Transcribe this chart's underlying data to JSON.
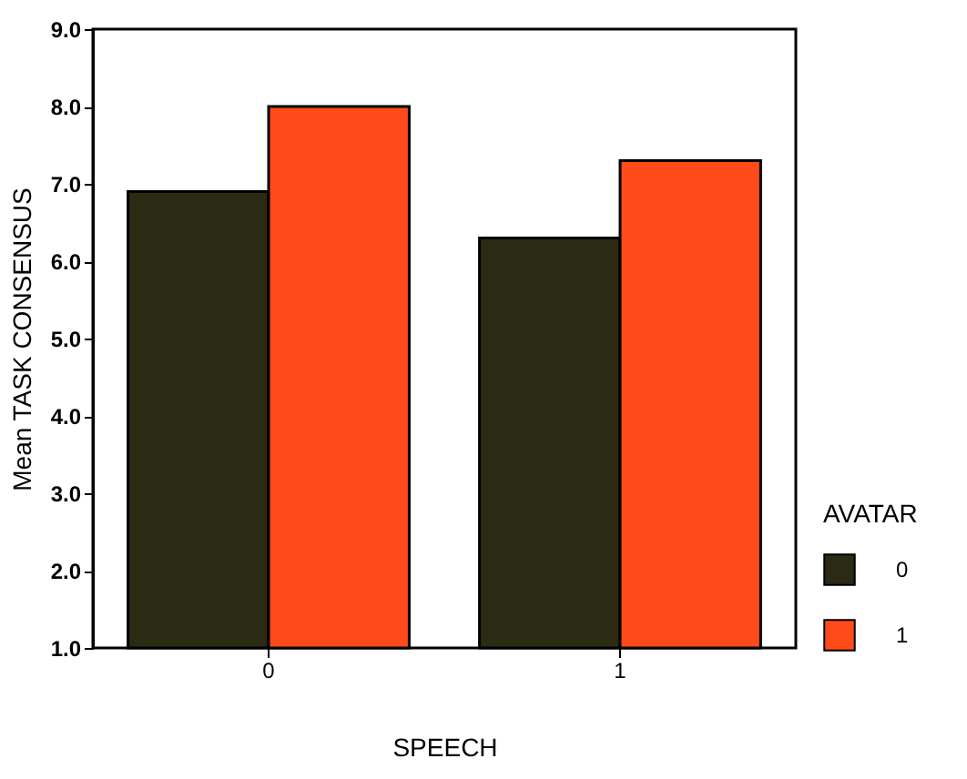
{
  "chart_data": {
    "type": "bar",
    "xlabel": "SPEECH",
    "ylabel": "Mean TASK CONSENSUS",
    "legend_title": "AVATAR",
    "categories": [
      "0",
      "1"
    ],
    "series": [
      {
        "name": "0",
        "color": "#2b2a12",
        "values": [
          6.9,
          6.3
        ]
      },
      {
        "name": "1",
        "color": "#ff4a1a",
        "values": [
          8.0,
          7.3
        ]
      }
    ],
    "ylim": [
      1,
      9
    ],
    "yticks": [
      {
        "value": 1,
        "label": "1.0"
      },
      {
        "value": 2,
        "label": "2.0"
      },
      {
        "value": 3,
        "label": "3.0"
      },
      {
        "value": 4,
        "label": "4.0"
      },
      {
        "value": 5,
        "label": "5.0"
      },
      {
        "value": 6,
        "label": "6.0"
      },
      {
        "value": 7,
        "label": "7.0"
      },
      {
        "value": 8,
        "label": "8.0"
      },
      {
        "value": 9,
        "label": "9.0"
      }
    ],
    "grid": false,
    "legend": "right"
  }
}
